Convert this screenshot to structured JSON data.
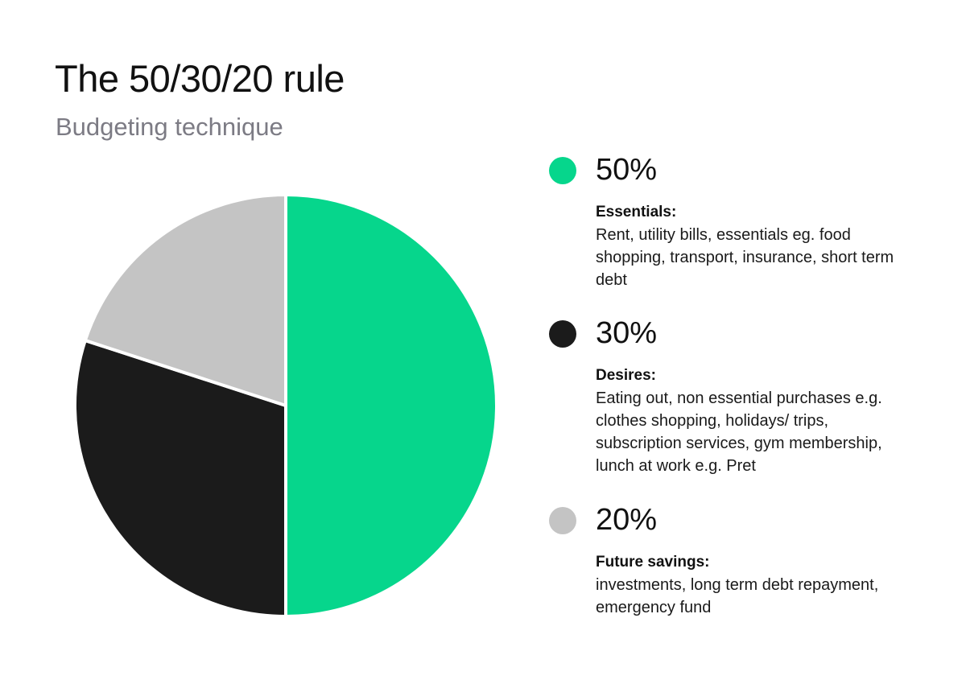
{
  "title": "The 50/30/20 rule",
  "subtitle": "Budgeting technique",
  "colors": {
    "essentials": "#06d68c",
    "desires": "#1b1b1b",
    "savings": "#c4c4c4"
  },
  "legend": [
    {
      "percent": "50%",
      "category": "Essentials:",
      "description": "Rent, utility bills, essentials eg. food shopping, transport, insurance, short term debt"
    },
    {
      "percent": "30%",
      "category": "Desires:",
      "description": "Eating out, non essential purchases e.g. clothes shopping, holidays/ trips, subscription services, gym membership, lunch at work e.g. Pret"
    },
    {
      "percent": "20%",
      "category": "Future savings:",
      "description": "investments, long term debt repayment, emergency fund"
    }
  ],
  "chart_data": {
    "type": "pie",
    "title": "The 50/30/20 rule",
    "subtitle": "Budgeting technique",
    "categories": [
      "Essentials",
      "Desires",
      "Future savings"
    ],
    "values": [
      50,
      30,
      20
    ],
    "colors": [
      "#06d68c",
      "#1b1b1b",
      "#c4c4c4"
    ],
    "start": "12 o'clock",
    "direction": "clockwise",
    "legend_position": "right"
  }
}
